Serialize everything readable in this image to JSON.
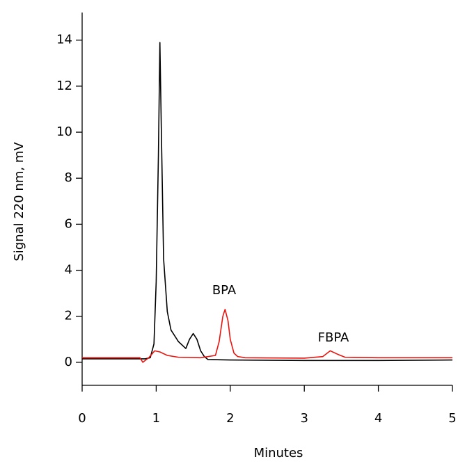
{
  "chart_data": {
    "type": "line",
    "xlabel": "Minutes",
    "ylabel": "Signal 220 nm, mV",
    "annotations": [
      "BPA",
      "FBPA"
    ],
    "xlim": [
      0,
      5
    ],
    "xticks": [
      0,
      1,
      2,
      3,
      4,
      5
    ],
    "ylim": [
      -1,
      15.2
    ],
    "yticks": [
      0,
      2,
      4,
      6,
      8,
      10,
      12,
      14
    ],
    "series": [
      {
        "color": "#000000",
        "x": [
          0,
          0.5,
          0.85,
          0.92,
          0.97,
          1.0,
          1.03,
          1.05,
          1.07,
          1.1,
          1.15,
          1.2,
          1.3,
          1.4,
          1.45,
          1.5,
          1.55,
          1.6,
          1.65,
          1.7,
          2,
          3,
          4,
          5
        ],
        "values": [
          0.15,
          0.15,
          0.15,
          0.2,
          0.8,
          3.5,
          9,
          13.9,
          10,
          4.5,
          2.2,
          1.4,
          0.9,
          0.6,
          1.0,
          1.25,
          1.0,
          0.5,
          0.25,
          0.12,
          0.1,
          0.08,
          0.08,
          0.1
        ]
      },
      {
        "color": "#e8140e",
        "x": [
          0,
          0.5,
          0.78,
          0.82,
          0.9,
          0.98,
          1.05,
          1.15,
          1.3,
          1.6,
          1.8,
          1.85,
          1.9,
          1.93,
          1.97,
          2.0,
          2.05,
          2.1,
          2.2,
          3.0,
          3.25,
          3.35,
          3.45,
          3.55,
          4,
          5
        ],
        "values": [
          0.2,
          0.2,
          0.2,
          0,
          0.2,
          0.5,
          0.45,
          0.3,
          0.22,
          0.2,
          0.3,
          0.9,
          2.0,
          2.3,
          1.8,
          1.0,
          0.4,
          0.25,
          0.2,
          0.18,
          0.25,
          0.5,
          0.35,
          0.22,
          0.2,
          0.2
        ]
      }
    ]
  }
}
